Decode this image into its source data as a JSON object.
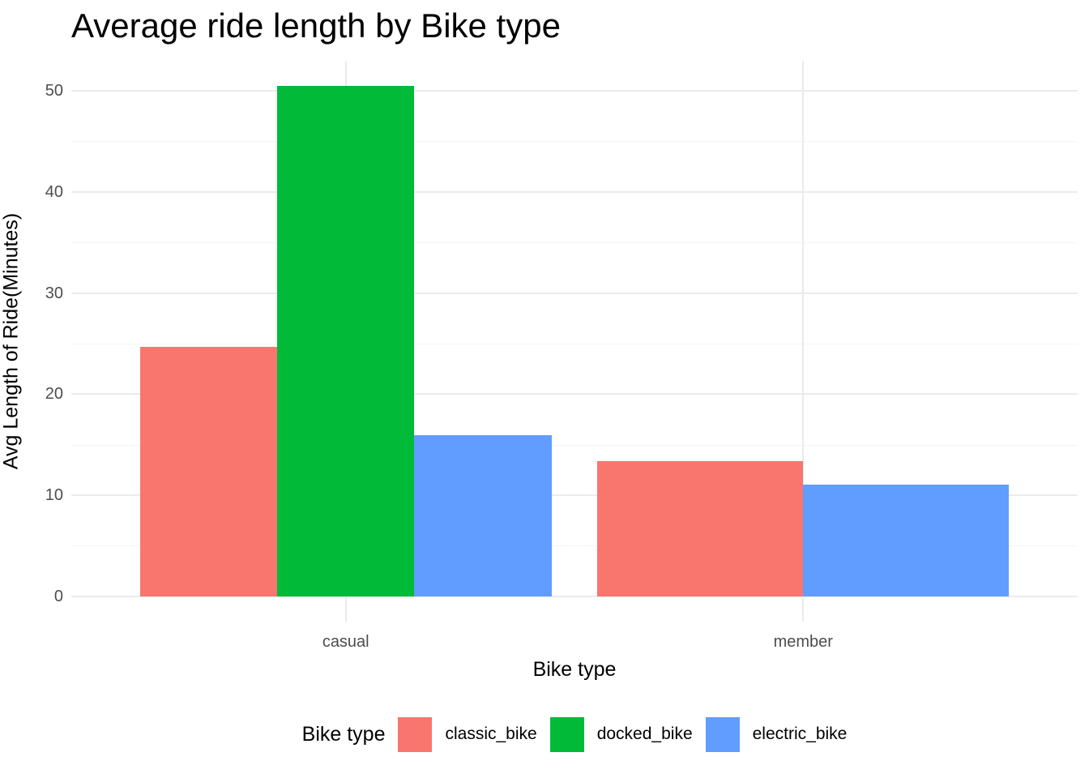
{
  "chart_data": {
    "type": "bar",
    "title": "Average ride length by Bike type",
    "xlabel": "Bike type",
    "ylabel": "Avg Length of Ride(Minutes)",
    "categories": [
      "casual",
      "member"
    ],
    "series": [
      {
        "name": "classic_bike",
        "color": "#F8766D",
        "values": [
          24.7,
          13.4
        ]
      },
      {
        "name": "docked_bike",
        "color": "#00BA38",
        "values": [
          50.5,
          null
        ]
      },
      {
        "name": "electric_bike",
        "color": "#619CFF",
        "values": [
          15.9,
          11.0
        ]
      }
    ],
    "y_ticks": [
      0,
      10,
      20,
      30,
      40,
      50
    ],
    "ylim": [
      -2.52,
      52.98
    ],
    "bar_group_fill_ratio": 0.9,
    "grid": {
      "major": true,
      "minor": true,
      "vertical_at_categories": true
    },
    "legend": {
      "title": "Bike type",
      "position": "bottom"
    },
    "style": {
      "background": "#FFFFFF",
      "grid_major_color": "#EBEBEB",
      "grid_minor_color": "#F5F5F5",
      "tick_label_color": "#4D4D4D",
      "title_color": "#000000",
      "axis_title_color": "#000000",
      "legend_text_color": "#000000"
    }
  }
}
